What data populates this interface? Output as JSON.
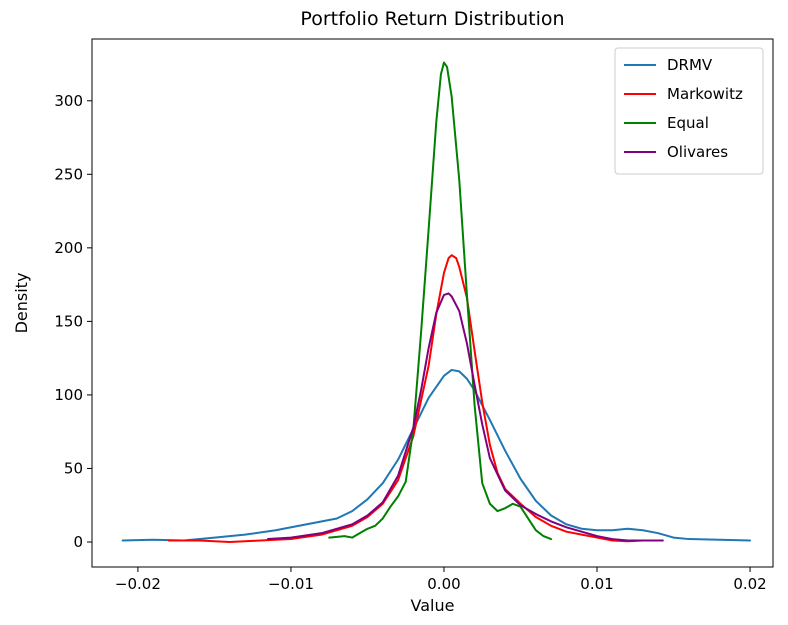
{
  "chart_data": {
    "type": "line",
    "title": "Portfolio Return Distribution",
    "xlabel": "Value",
    "ylabel": "Density",
    "xlim": [
      -0.023,
      0.0215
    ],
    "ylim": [
      -17,
      342
    ],
    "xticks": [
      -0.02,
      -0.01,
      0.0,
      0.01,
      0.02
    ],
    "xtick_labels": [
      "−0.02",
      "−0.01",
      "0.00",
      "0.01",
      "0.02"
    ],
    "yticks": [
      0,
      50,
      100,
      150,
      200,
      250,
      300
    ],
    "ytick_labels": [
      "0",
      "50",
      "100",
      "150",
      "200",
      "250",
      "300"
    ],
    "grid": false,
    "legend_position": "top-right",
    "series": [
      {
        "name": "DRMV",
        "color": "#1f77b4",
        "points": [
          [
            -0.021,
            1
          ],
          [
            -0.019,
            1.5
          ],
          [
            -0.017,
            1
          ],
          [
            -0.015,
            3
          ],
          [
            -0.013,
            5
          ],
          [
            -0.011,
            8
          ],
          [
            -0.009,
            12
          ],
          [
            -0.007,
            16
          ],
          [
            -0.006,
            21
          ],
          [
            -0.005,
            29
          ],
          [
            -0.004,
            40
          ],
          [
            -0.003,
            56
          ],
          [
            -0.002,
            77
          ],
          [
            -0.001,
            98
          ],
          [
            0.0,
            113
          ],
          [
            0.0005,
            117
          ],
          [
            0.001,
            116
          ],
          [
            0.0015,
            111
          ],
          [
            0.002,
            103
          ],
          [
            0.003,
            83
          ],
          [
            0.004,
            62
          ],
          [
            0.005,
            43
          ],
          [
            0.006,
            28
          ],
          [
            0.007,
            18
          ],
          [
            0.008,
            12
          ],
          [
            0.009,
            9
          ],
          [
            0.01,
            8
          ],
          [
            0.011,
            8
          ],
          [
            0.012,
            9
          ],
          [
            0.013,
            8
          ],
          [
            0.014,
            6
          ],
          [
            0.015,
            3
          ],
          [
            0.016,
            2
          ],
          [
            0.018,
            1.5
          ],
          [
            0.02,
            1
          ]
        ]
      },
      {
        "name": "Markowitz",
        "color": "#ff0000",
        "points": [
          [
            -0.018,
            1
          ],
          [
            -0.016,
            1
          ],
          [
            -0.014,
            0
          ],
          [
            -0.012,
            1
          ],
          [
            -0.01,
            2
          ],
          [
            -0.008,
            5
          ],
          [
            -0.006,
            11
          ],
          [
            -0.005,
            17
          ],
          [
            -0.004,
            26
          ],
          [
            -0.003,
            42
          ],
          [
            -0.002,
            72
          ],
          [
            -0.001,
            120
          ],
          [
            -0.0005,
            155
          ],
          [
            0.0,
            183
          ],
          [
            0.0003,
            193
          ],
          [
            0.0005,
            195
          ],
          [
            0.0008,
            193
          ],
          [
            0.001,
            187
          ],
          [
            0.0015,
            166
          ],
          [
            0.002,
            130
          ],
          [
            0.0025,
            95
          ],
          [
            0.003,
            66
          ],
          [
            0.0035,
            47
          ],
          [
            0.004,
            36
          ],
          [
            0.005,
            26
          ],
          [
            0.006,
            17
          ],
          [
            0.007,
            11
          ],
          [
            0.008,
            7
          ],
          [
            0.009,
            5
          ],
          [
            0.01,
            3
          ],
          [
            0.011,
            1
          ],
          [
            0.012,
            0.5
          ],
          [
            0.013,
            1
          ],
          [
            0.014,
            1
          ]
        ]
      },
      {
        "name": "Equal",
        "color": "#008000",
        "points": [
          [
            -0.0075,
            3
          ],
          [
            -0.0065,
            4
          ],
          [
            -0.006,
            3
          ],
          [
            -0.0055,
            6
          ],
          [
            -0.005,
            9
          ],
          [
            -0.0045,
            11
          ],
          [
            -0.004,
            16
          ],
          [
            -0.0035,
            24
          ],
          [
            -0.003,
            31
          ],
          [
            -0.0025,
            41
          ],
          [
            -0.002,
            77
          ],
          [
            -0.0015,
            142
          ],
          [
            -0.001,
            213
          ],
          [
            -0.0005,
            286
          ],
          [
            -0.0002,
            318
          ],
          [
            0.0,
            326
          ],
          [
            0.0002,
            323
          ],
          [
            0.0005,
            303
          ],
          [
            0.001,
            246
          ],
          [
            0.0015,
            168
          ],
          [
            0.002,
            93
          ],
          [
            0.0025,
            40
          ],
          [
            0.003,
            26
          ],
          [
            0.0035,
            21
          ],
          [
            0.004,
            23
          ],
          [
            0.0045,
            26
          ],
          [
            0.005,
            24
          ],
          [
            0.0055,
            16
          ],
          [
            0.006,
            8
          ],
          [
            0.0065,
            4
          ],
          [
            0.007,
            2
          ]
        ]
      },
      {
        "name": "Olivares",
        "color": "#800080",
        "points": [
          [
            -0.0115,
            2
          ],
          [
            -0.01,
            3
          ],
          [
            -0.008,
            6
          ],
          [
            -0.006,
            12
          ],
          [
            -0.005,
            18
          ],
          [
            -0.004,
            27
          ],
          [
            -0.003,
            45
          ],
          [
            -0.002,
            78
          ],
          [
            -0.0015,
            103
          ],
          [
            -0.001,
            132
          ],
          [
            -0.0005,
            156
          ],
          [
            0.0,
            168
          ],
          [
            0.0003,
            169
          ],
          [
            0.0005,
            167
          ],
          [
            0.001,
            157
          ],
          [
            0.0015,
            135
          ],
          [
            0.002,
            107
          ],
          [
            0.0025,
            80
          ],
          [
            0.003,
            57
          ],
          [
            0.004,
            35
          ],
          [
            0.005,
            25
          ],
          [
            0.006,
            19
          ],
          [
            0.007,
            14
          ],
          [
            0.008,
            10
          ],
          [
            0.009,
            7
          ],
          [
            0.01,
            4
          ],
          [
            0.011,
            2
          ],
          [
            0.012,
            1
          ],
          [
            0.0135,
            1
          ],
          [
            0.0143,
            1
          ]
        ]
      }
    ]
  }
}
